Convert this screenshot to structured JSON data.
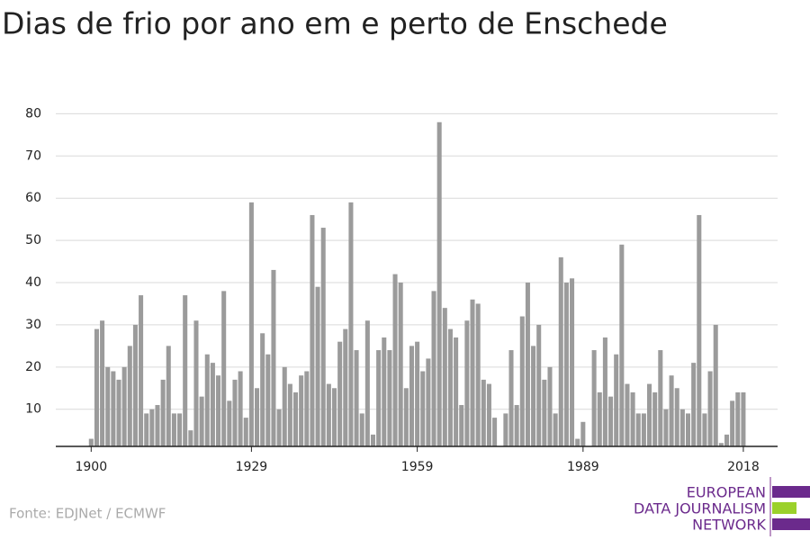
{
  "chart_data": {
    "type": "bar",
    "title": "Dias de frio por ano em e perto de Enschede",
    "source": "Fonte: EDJNet / ECMWF",
    "logo": [
      "EUROPEAN",
      "DATA JOURNALISM",
      "NETWORK"
    ],
    "color": "#9b9b9b",
    "x": [
      1900,
      1901,
      1902,
      1903,
      1904,
      1905,
      1906,
      1907,
      1908,
      1909,
      1910,
      1911,
      1912,
      1913,
      1914,
      1915,
      1916,
      1917,
      1918,
      1919,
      1920,
      1921,
      1922,
      1923,
      1924,
      1925,
      1926,
      1927,
      1928,
      1929,
      1930,
      1931,
      1932,
      1933,
      1934,
      1935,
      1936,
      1937,
      1938,
      1939,
      1940,
      1941,
      1942,
      1943,
      1944,
      1945,
      1946,
      1947,
      1948,
      1949,
      1950,
      1951,
      1952,
      1953,
      1954,
      1955,
      1956,
      1957,
      1958,
      1959,
      1960,
      1961,
      1962,
      1963,
      1964,
      1965,
      1966,
      1967,
      1968,
      1969,
      1970,
      1971,
      1972,
      1973,
      1974,
      1975,
      1976,
      1977,
      1978,
      1979,
      1980,
      1981,
      1982,
      1983,
      1984,
      1985,
      1986,
      1987,
      1988,
      1989,
      1990,
      1991,
      1992,
      1993,
      1994,
      1995,
      1996,
      1997,
      1998,
      1999,
      2000,
      2001,
      2002,
      2003,
      2004,
      2005,
      2006,
      2007,
      2008,
      2009,
      2010,
      2011,
      2012,
      2013,
      2014,
      2015,
      2016,
      2017,
      2018
    ],
    "values": [
      3,
      29,
      31,
      20,
      19,
      17,
      20,
      25,
      30,
      37,
      9,
      10,
      11,
      17,
      25,
      9,
      9,
      37,
      5,
      31,
      13,
      23,
      21,
      18,
      38,
      12,
      17,
      19,
      8,
      59,
      15,
      28,
      23,
      43,
      10,
      20,
      16,
      14,
      18,
      19,
      56,
      39,
      53,
      16,
      15,
      26,
      29,
      59,
      24,
      9,
      31,
      4,
      24,
      27,
      24,
      42,
      40,
      15,
      25,
      26,
      19,
      22,
      38,
      78,
      34,
      29,
      27,
      11,
      31,
      36,
      35,
      17,
      16,
      8,
      0,
      9,
      24,
      11,
      32,
      40,
      25,
      30,
      17,
      20,
      9,
      46,
      40,
      41,
      3,
      7,
      0,
      24,
      14,
      27,
      13,
      23,
      49,
      16,
      14,
      9,
      9,
      16,
      14,
      24,
      10,
      18,
      15,
      10,
      9,
      21,
      56,
      9,
      19,
      30,
      2,
      4,
      12,
      14,
      14
    ],
    "xlim": [
      1893.6,
      2024.2
    ],
    "xticks": [
      1900,
      1929,
      1959,
      1989,
      2018
    ],
    "ylim": [
      1.2,
      82
    ],
    "yticks": [
      10,
      20,
      30,
      40,
      50,
      60,
      70,
      80
    ],
    "grid": true
  }
}
